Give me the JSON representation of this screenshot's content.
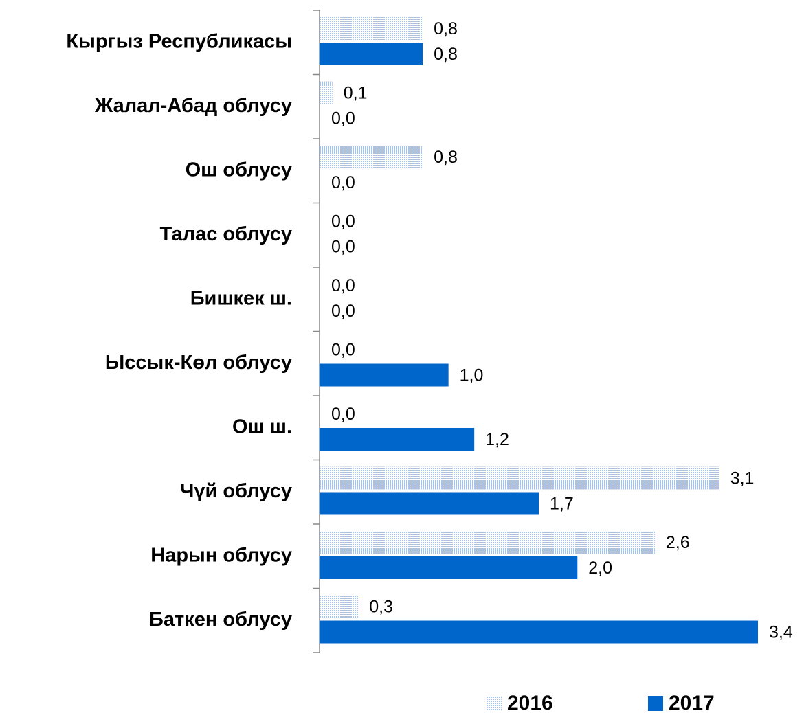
{
  "chart_data": {
    "type": "bar",
    "orientation": "horizontal",
    "categories": [
      "Кыргыз Республикасы",
      "Жалал-Абад облусу",
      "Ош облусу",
      "Талас облусу",
      "Бишкек ш.",
      "Ыссык-Көл облусу",
      "Ош ш.",
      "Чүй облусу",
      "Нарын облусу",
      "Баткен облусу"
    ],
    "series": [
      {
        "name": "2016",
        "color": "#a9c4e8",
        "pattern": "dotted",
        "values": [
          0.8,
          0.1,
          0.8,
          0.0,
          0.0,
          0.0,
          0.0,
          3.1,
          2.6,
          0.3
        ],
        "value_labels": [
          "0,8",
          "0,1",
          "0,8",
          "0,0",
          "0,0",
          "0,0",
          "0,0",
          "3,1",
          "2,6",
          "0,3"
        ]
      },
      {
        "name": "2017",
        "color": "#0066cc",
        "values": [
          0.8,
          0.0,
          0.0,
          0.0,
          0.0,
          1.0,
          1.2,
          1.7,
          2.0,
          3.4
        ],
        "value_labels": [
          "0,8",
          "0,0",
          "0,0",
          "0,0",
          "0,0",
          "1,0",
          "1,2",
          "1,7",
          "2,0",
          "3,4"
        ]
      }
    ],
    "legend": "bottom"
  }
}
